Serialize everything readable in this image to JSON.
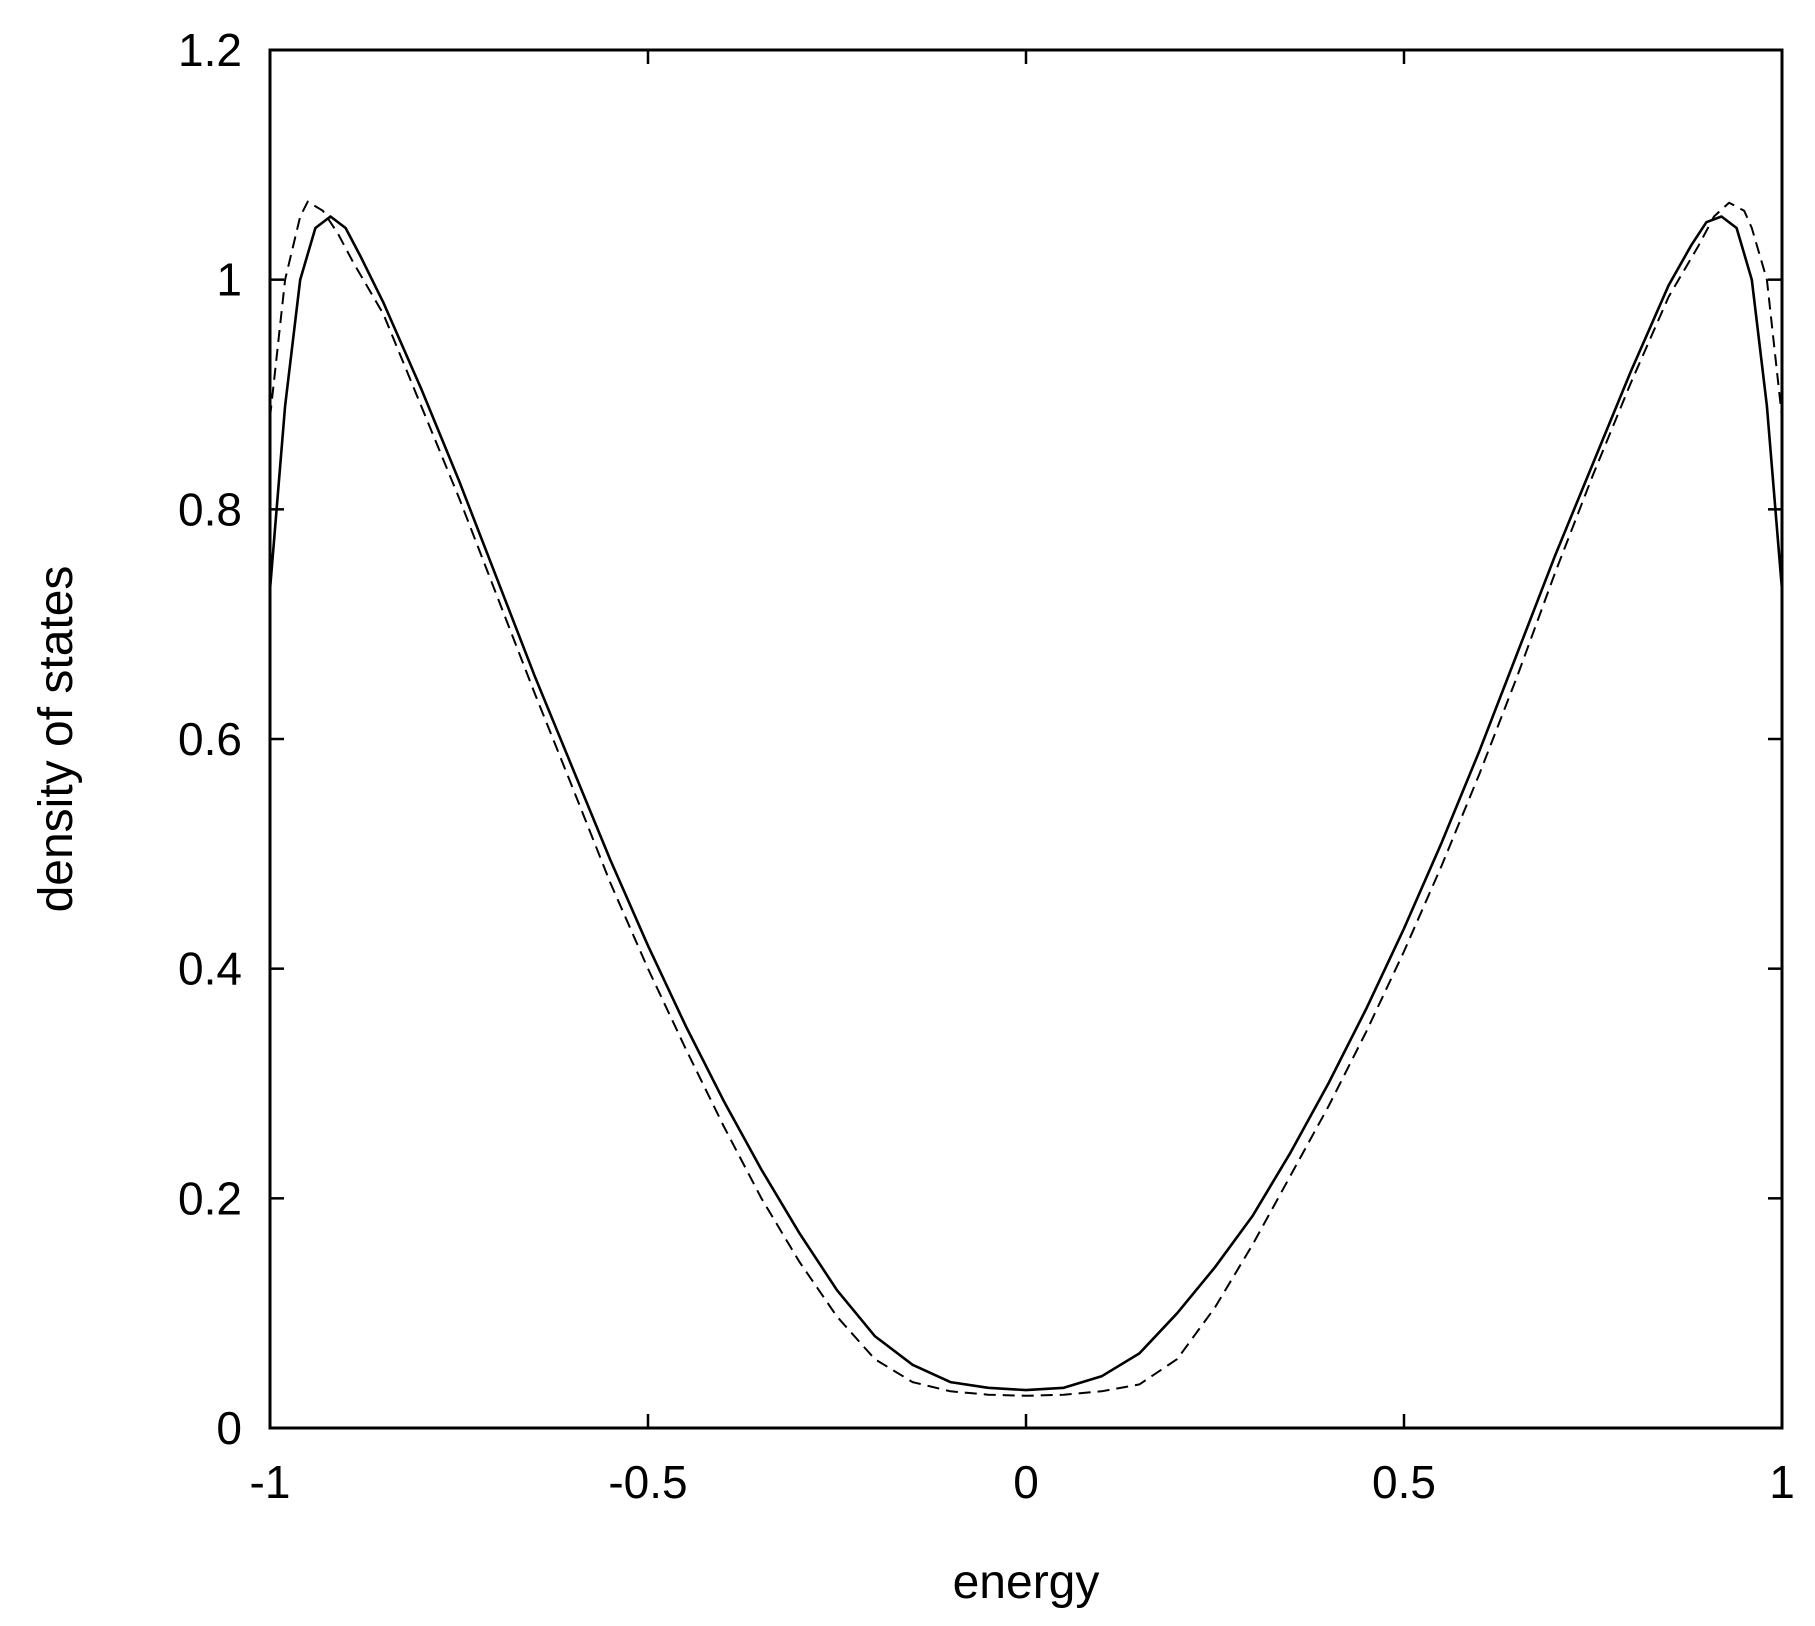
{
  "chart_data": {
    "type": "line",
    "title": "",
    "xlabel": "energy",
    "ylabel": "density of states",
    "xlim": [
      -1,
      1
    ],
    "ylim": [
      0,
      1.2
    ],
    "xticks": [
      -1,
      -0.5,
      0,
      0.5,
      1
    ],
    "xtick_labels": [
      "-1",
      "-0.5",
      "0",
      "0.5",
      "1"
    ],
    "yticks": [
      0,
      0.2,
      0.4,
      0.6,
      0.8,
      1,
      1.2
    ],
    "ytick_labels": [
      "0",
      "0.2",
      "0.4",
      "0.6",
      "0.8",
      "1",
      "1.2"
    ],
    "grid": false,
    "legend": "none",
    "series": [
      {
        "style": "solid",
        "color": "#000000",
        "x": [
          -1,
          -0.98,
          -0.96,
          -0.94,
          -0.92,
          -0.9,
          -0.88,
          -0.85,
          -0.8,
          -0.75,
          -0.7,
          -0.65,
          -0.6,
          -0.55,
          -0.5,
          -0.45,
          -0.4,
          -0.35,
          -0.3,
          -0.25,
          -0.2,
          -0.15,
          -0.1,
          -0.05,
          0,
          0.05,
          0.1,
          0.15,
          0.2,
          0.25,
          0.3,
          0.35,
          0.4,
          0.45,
          0.5,
          0.55,
          0.6,
          0.65,
          0.7,
          0.75,
          0.8,
          0.85,
          0.88,
          0.9,
          0.92,
          0.94,
          0.96,
          0.98,
          1
        ],
        "y": [
          0.73,
          0.89,
          1.0,
          1.045,
          1.055,
          1.045,
          1.02,
          0.98,
          0.905,
          0.825,
          0.74,
          0.655,
          0.575,
          0.495,
          0.42,
          0.35,
          0.285,
          0.225,
          0.17,
          0.12,
          0.08,
          0.055,
          0.04,
          0.035,
          0.033,
          0.035,
          0.045,
          0.065,
          0.1,
          0.14,
          0.185,
          0.24,
          0.3,
          0.365,
          0.435,
          0.51,
          0.59,
          0.675,
          0.76,
          0.84,
          0.92,
          0.995,
          1.03,
          1.05,
          1.055,
          1.045,
          1.0,
          0.89,
          0.73
        ]
      },
      {
        "style": "dashed",
        "color": "#000000",
        "x": [
          -1,
          -0.98,
          -0.96,
          -0.95,
          -0.93,
          -0.91,
          -0.89,
          -0.85,
          -0.8,
          -0.75,
          -0.7,
          -0.65,
          -0.6,
          -0.55,
          -0.5,
          -0.45,
          -0.4,
          -0.35,
          -0.3,
          -0.25,
          -0.2,
          -0.15,
          -0.1,
          -0.05,
          0,
          0.05,
          0.1,
          0.15,
          0.2,
          0.25,
          0.3,
          0.35,
          0.4,
          0.45,
          0.5,
          0.55,
          0.6,
          0.65,
          0.7,
          0.75,
          0.8,
          0.85,
          0.89,
          0.91,
          0.93,
          0.95,
          0.96,
          0.98,
          1
        ],
        "y": [
          0.88,
          1.0,
          1.055,
          1.068,
          1.06,
          1.04,
          1.015,
          0.97,
          0.89,
          0.81,
          0.725,
          0.64,
          0.558,
          0.475,
          0.4,
          0.33,
          0.263,
          0.2,
          0.145,
          0.097,
          0.06,
          0.04,
          0.032,
          0.029,
          0.028,
          0.029,
          0.032,
          0.038,
          0.06,
          0.105,
          0.16,
          0.22,
          0.28,
          0.345,
          0.415,
          0.49,
          0.57,
          0.655,
          0.745,
          0.83,
          0.91,
          0.985,
          1.03,
          1.055,
          1.067,
          1.06,
          1.045,
          1.0,
          0.88
        ]
      }
    ]
  }
}
